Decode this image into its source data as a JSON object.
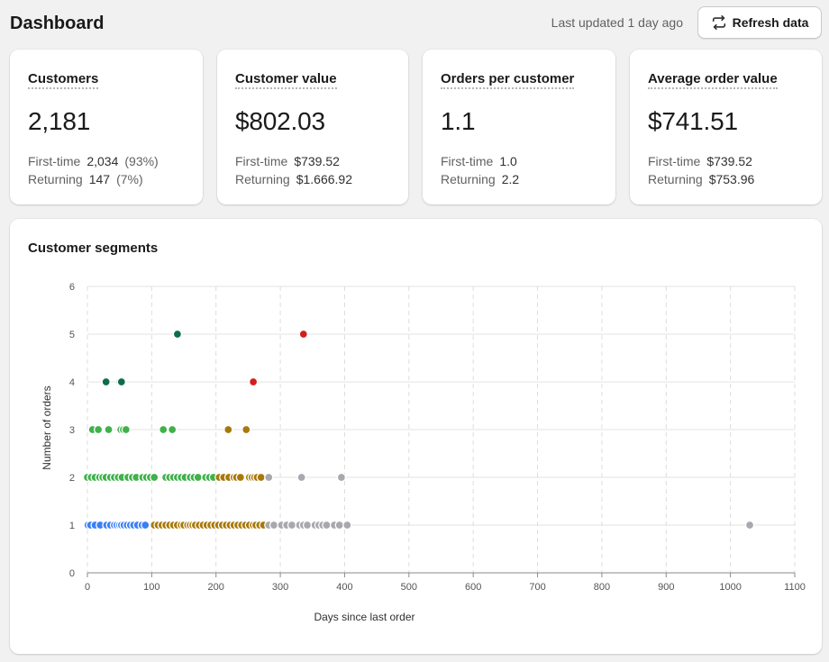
{
  "header": {
    "title": "Dashboard",
    "last_updated": "Last updated 1 day ago",
    "refresh_label": "Refresh data",
    "refresh_icon": "refresh-icon"
  },
  "metrics": [
    {
      "title": "Customers",
      "value": "2,181",
      "rows": [
        {
          "label": "First-time",
          "value": "2,034",
          "pct": "(93%)"
        },
        {
          "label": "Returning",
          "value": "147",
          "pct": "(7%)"
        }
      ]
    },
    {
      "title": "Customer value",
      "value": "$802.03",
      "rows": [
        {
          "label": "First-time",
          "value": "$739.52",
          "pct": ""
        },
        {
          "label": "Returning",
          "value": "$1.666.92",
          "pct": ""
        }
      ]
    },
    {
      "title": "Orders per customer",
      "value": "1.1",
      "rows": [
        {
          "label": "First-time",
          "value": "1.0",
          "pct": ""
        },
        {
          "label": "Returning",
          "value": "2.2",
          "pct": ""
        }
      ]
    },
    {
      "title": "Average order value",
      "value": "$741.51",
      "rows": [
        {
          "label": "First-time",
          "value": "$739.52",
          "pct": ""
        },
        {
          "label": "Returning",
          "value": "$753.96",
          "pct": ""
        }
      ]
    }
  ],
  "segments": {
    "title": "Customer segments"
  },
  "chart_data": {
    "type": "scatter",
    "title": "Customer segments",
    "xlabel": "Days since last order",
    "ylabel": "Number of orders",
    "xlim": [
      0,
      1100
    ],
    "ylim": [
      0,
      6
    ],
    "xticks": [
      0,
      100,
      200,
      300,
      400,
      500,
      600,
      700,
      800,
      900,
      1000,
      1100
    ],
    "yticks": [
      0,
      1,
      2,
      3,
      4,
      5,
      6
    ],
    "grid": true,
    "series": [
      {
        "color": "#3b7ff5",
        "points": [
          [
            1,
            1
          ],
          [
            5,
            1
          ],
          [
            12,
            1
          ],
          [
            20,
            1
          ],
          [
            30,
            1
          ],
          [
            36,
            1
          ],
          [
            42,
            1
          ],
          [
            46,
            1
          ],
          [
            50,
            1
          ],
          [
            53,
            1
          ],
          [
            57,
            1
          ],
          [
            62,
            1
          ],
          [
            67,
            1
          ],
          [
            72,
            1
          ],
          [
            78,
            1
          ],
          [
            85,
            1
          ],
          [
            90,
            1
          ]
        ]
      },
      {
        "color": "#40b14b",
        "points": [
          [
            8,
            3
          ],
          [
            17,
            3
          ],
          [
            33,
            3
          ],
          [
            52,
            3
          ],
          [
            56,
            3
          ],
          [
            60,
            3
          ],
          [
            118,
            3
          ],
          [
            132,
            3
          ],
          [
            0,
            2
          ],
          [
            6,
            2
          ],
          [
            12,
            2
          ],
          [
            19,
            2
          ],
          [
            24,
            2
          ],
          [
            29,
            2
          ],
          [
            36,
            2
          ],
          [
            42,
            2
          ],
          [
            48,
            2
          ],
          [
            54,
            2
          ],
          [
            63,
            2
          ],
          [
            70,
            2
          ],
          [
            76,
            2
          ],
          [
            86,
            2
          ],
          [
            92,
            2
          ],
          [
            98,
            2
          ],
          [
            104,
            2
          ],
          [
            122,
            2
          ],
          [
            128,
            2
          ],
          [
            134,
            2
          ],
          [
            140,
            2
          ],
          [
            146,
            2
          ],
          [
            152,
            2
          ],
          [
            160,
            2
          ],
          [
            166,
            2
          ],
          [
            172,
            2
          ],
          [
            184,
            2
          ],
          [
            190,
            2
          ],
          [
            196,
            2
          ]
        ]
      },
      {
        "color": "#0d6d4b",
        "points": [
          [
            29,
            4
          ],
          [
            51,
            4
          ],
          [
            53,
            4
          ],
          [
            140,
            5
          ]
        ]
      },
      {
        "color": "#d21e1e",
        "points": [
          [
            258,
            4
          ],
          [
            336,
            5
          ]
        ]
      },
      {
        "color": "#a8790a",
        "points": [
          [
            219,
            3
          ],
          [
            247,
            3
          ],
          [
            205,
            2
          ],
          [
            212,
            2
          ],
          [
            220,
            2
          ],
          [
            228,
            2
          ],
          [
            232,
            2
          ],
          [
            238,
            2
          ],
          [
            252,
            2
          ],
          [
            256,
            2
          ],
          [
            260,
            2
          ],
          [
            264,
            2
          ],
          [
            270,
            2
          ],
          [
            104,
            1
          ],
          [
            110,
            1
          ],
          [
            116,
            1
          ],
          [
            122,
            1
          ],
          [
            128,
            1
          ],
          [
            134,
            1
          ],
          [
            140,
            1
          ],
          [
            146,
            1
          ],
          [
            150,
            1
          ],
          [
            156,
            1
          ],
          [
            160,
            1
          ],
          [
            164,
            1
          ],
          [
            168,
            1
          ],
          [
            174,
            1
          ],
          [
            180,
            1
          ],
          [
            186,
            1
          ],
          [
            192,
            1
          ],
          [
            198,
            1
          ],
          [
            204,
            1
          ],
          [
            210,
            1
          ],
          [
            216,
            1
          ],
          [
            222,
            1
          ],
          [
            228,
            1
          ],
          [
            234,
            1
          ],
          [
            240,
            1
          ],
          [
            246,
            1
          ],
          [
            252,
            1
          ],
          [
            258,
            1
          ],
          [
            262,
            1
          ],
          [
            268,
            1
          ],
          [
            274,
            1
          ]
        ]
      },
      {
        "color": "#a8a8ae",
        "points": [
          [
            282,
            2
          ],
          [
            333,
            2
          ],
          [
            395,
            2
          ],
          [
            282,
            1
          ],
          [
            290,
            1
          ],
          [
            302,
            1
          ],
          [
            310,
            1
          ],
          [
            318,
            1
          ],
          [
            330,
            1
          ],
          [
            336,
            1
          ],
          [
            342,
            1
          ],
          [
            354,
            1
          ],
          [
            360,
            1
          ],
          [
            366,
            1
          ],
          [
            372,
            1
          ],
          [
            384,
            1
          ],
          [
            392,
            1
          ],
          [
            404,
            1
          ],
          [
            1030,
            1
          ]
        ]
      }
    ]
  }
}
